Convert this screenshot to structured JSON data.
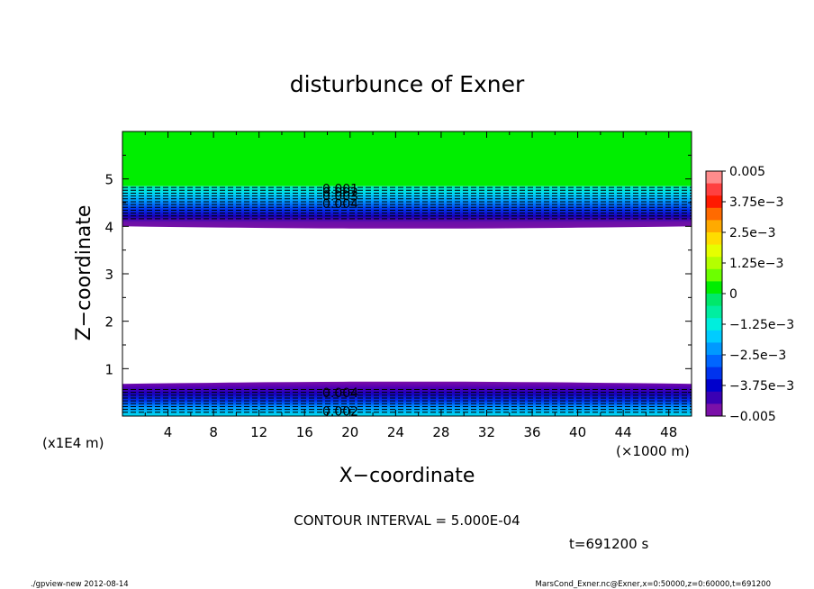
{
  "chart_data": {
    "type": "contour",
    "title": "disturbunce of Exner",
    "xlabel": "X−coordinate",
    "ylabel": "Z−coordinate",
    "x_unit": "(×1000 m)",
    "y_unit": "(x1E4 m)",
    "xlim": [
      0,
      50
    ],
    "ylim": [
      0,
      6
    ],
    "x_ticks": [
      4,
      8,
      12,
      16,
      20,
      24,
      28,
      32,
      36,
      40,
      44,
      48
    ],
    "y_ticks": [
      1,
      2,
      3,
      4,
      5
    ],
    "colorbar": {
      "labels": [
        "0.005",
        "3.75e−3",
        "2.5e−3",
        "1.25e−3",
        "0",
        "−1.25e−3",
        "−2.5e−3",
        "−3.75e−3",
        "−0.005"
      ],
      "values": [
        0.005,
        0.00375,
        0.0025,
        0.00125,
        0,
        -0.00125,
        -0.0025,
        -0.00375,
        -0.005
      ],
      "colors": [
        "#ff8c8c",
        "#ff4040",
        "#ff1a00",
        "#ff6a00",
        "#ffaa00",
        "#ffdd00",
        "#e6ff00",
        "#b4ff00",
        "#6cff00",
        "#00ee00",
        "#00e86a",
        "#00eea0",
        "#00eedd",
        "#00ccff",
        "#0099ff",
        "#0066ff",
        "#0033ee",
        "#0000cc",
        "#3a00b4",
        "#7a10a8"
      ]
    },
    "bands": [
      {
        "z_from": 4.85,
        "z_to": 6.0,
        "value": 0.0
      },
      {
        "z_from": 4.0,
        "z_to": 4.85,
        "value": -0.005,
        "gradient": "top-upper"
      },
      {
        "z_from": 0.68,
        "z_to": 4.0,
        "value": null
      },
      {
        "z_from": 0.0,
        "z_to": 0.68,
        "value": -0.005,
        "gradient": "bottom-lower"
      }
    ],
    "contour_labels": [
      "0.001",
      "0.002",
      "0.003",
      "0.004",
      "0.004",
      "0.002"
    ],
    "interval_text": "CONTOUR INTERVAL = 5.000E-04",
    "time_text": "t=691200 s"
  },
  "footer": {
    "left": "./gpview-new   2012-08-14",
    "right": "MarsCond_Exner.nc@Exner,x=0:50000,z=0:60000,t=691200"
  }
}
